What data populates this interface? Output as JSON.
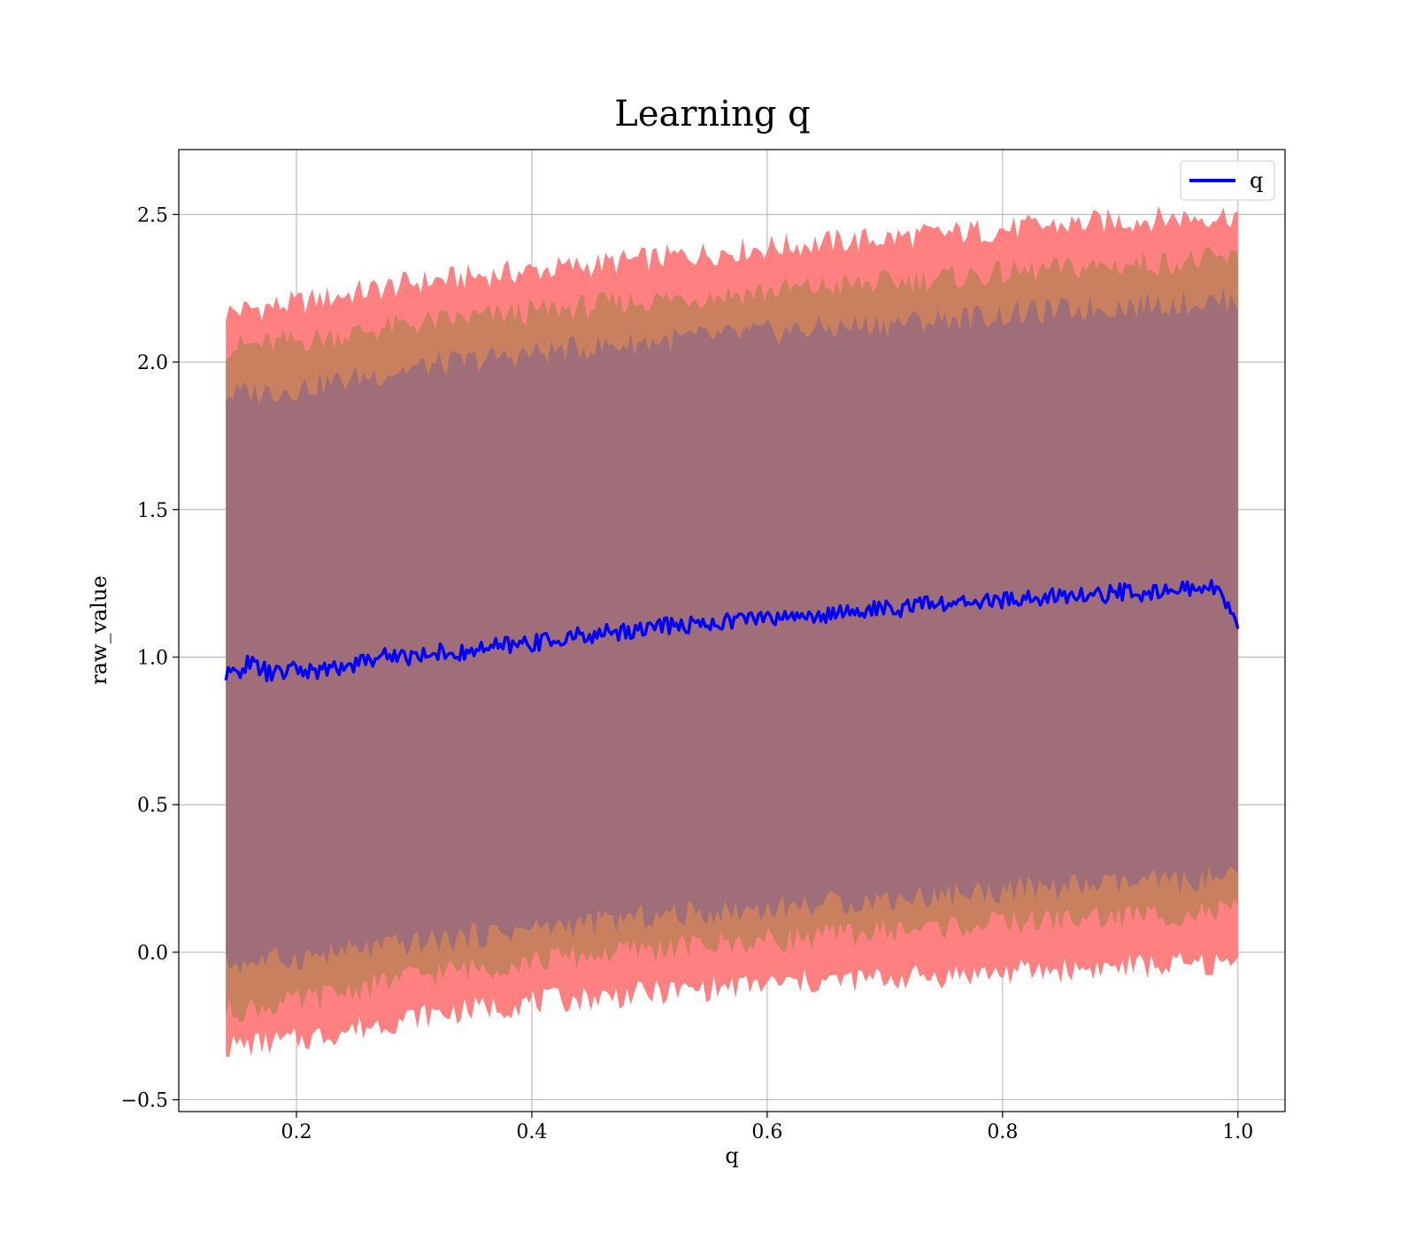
{
  "chart_data": {
    "type": "line",
    "title": "Learning q",
    "xlabel": "q",
    "ylabel": "raw_value",
    "xlim": [
      0.1,
      1.04
    ],
    "ylim": [
      -0.54,
      2.72
    ],
    "x_ticks": [
      0.2,
      0.4,
      0.6,
      0.8,
      1.0
    ],
    "x_tick_labels": [
      "0.2",
      "0.4",
      "0.6",
      "0.8",
      "1.0"
    ],
    "y_ticks": [
      -0.5,
      0.0,
      0.5,
      1.0,
      1.5,
      2.0,
      2.5
    ],
    "y_tick_labels": [
      "−0.5",
      "0.0",
      "0.5",
      "1.0",
      "1.5",
      "2.0",
      "2.5"
    ],
    "grid": true,
    "legend": {
      "position": "top-right",
      "entries": [
        "q"
      ]
    },
    "colors": {
      "line": "#0000ff",
      "band_outer": "#ff8080",
      "band_middle": "#c8805e",
      "band_inner": "#a06e78",
      "grid": "#b0b0b0"
    },
    "series": [
      {
        "name": "q",
        "x": [
          0.14,
          0.16,
          0.18,
          0.2,
          0.22,
          0.24,
          0.26,
          0.28,
          0.3,
          0.32,
          0.34,
          0.36,
          0.38,
          0.4,
          0.42,
          0.44,
          0.46,
          0.48,
          0.5,
          0.52,
          0.54,
          0.56,
          0.58,
          0.6,
          0.62,
          0.64,
          0.66,
          0.68,
          0.7,
          0.72,
          0.74,
          0.76,
          0.78,
          0.8,
          0.82,
          0.84,
          0.86,
          0.88,
          0.9,
          0.92,
          0.94,
          0.96,
          0.98,
          1.0
        ],
        "y": [
          0.93,
          0.98,
          0.94,
          0.96,
          0.95,
          0.97,
          0.99,
          1.01,
          1.0,
          1.02,
          1.01,
          1.03,
          1.04,
          1.05,
          1.06,
          1.07,
          1.08,
          1.09,
          1.1,
          1.11,
          1.11,
          1.12,
          1.13,
          1.13,
          1.14,
          1.14,
          1.15,
          1.16,
          1.16,
          1.17,
          1.18,
          1.18,
          1.19,
          1.19,
          1.2,
          1.2,
          1.21,
          1.21,
          1.22,
          1.22,
          1.23,
          1.23,
          1.24,
          1.1
        ]
      }
    ],
    "bands": [
      {
        "name": "outer",
        "x": [
          0.14,
          0.2,
          0.3,
          0.4,
          0.5,
          0.6,
          0.7,
          0.8,
          0.9,
          1.0
        ],
        "lower": [
          -0.32,
          -0.3,
          -0.22,
          -0.17,
          -0.14,
          -0.11,
          -0.09,
          -0.07,
          -0.05,
          -0.04
        ],
        "upper": [
          2.17,
          2.2,
          2.27,
          2.31,
          2.35,
          2.39,
          2.42,
          2.45,
          2.48,
          2.5
        ]
      },
      {
        "name": "middle",
        "x": [
          0.14,
          0.2,
          0.3,
          0.4,
          0.5,
          0.6,
          0.7,
          0.8,
          0.9,
          1.0
        ],
        "lower": [
          -0.2,
          -0.17,
          -0.08,
          -0.03,
          0.01,
          0.04,
          0.07,
          0.1,
          0.12,
          0.14
        ],
        "upper": [
          2.05,
          2.07,
          2.13,
          2.17,
          2.21,
          2.24,
          2.27,
          2.3,
          2.33,
          2.35
        ]
      },
      {
        "name": "inner",
        "x": [
          0.14,
          0.2,
          0.3,
          0.4,
          0.5,
          0.6,
          0.7,
          0.8,
          0.9,
          1.0
        ],
        "lower": [
          -0.04,
          -0.02,
          0.03,
          0.08,
          0.12,
          0.15,
          0.18,
          0.21,
          0.23,
          0.25
        ],
        "upper": [
          1.89,
          1.91,
          1.98,
          2.03,
          2.07,
          2.1,
          2.13,
          2.16,
          2.19,
          2.21
        ]
      }
    ]
  }
}
